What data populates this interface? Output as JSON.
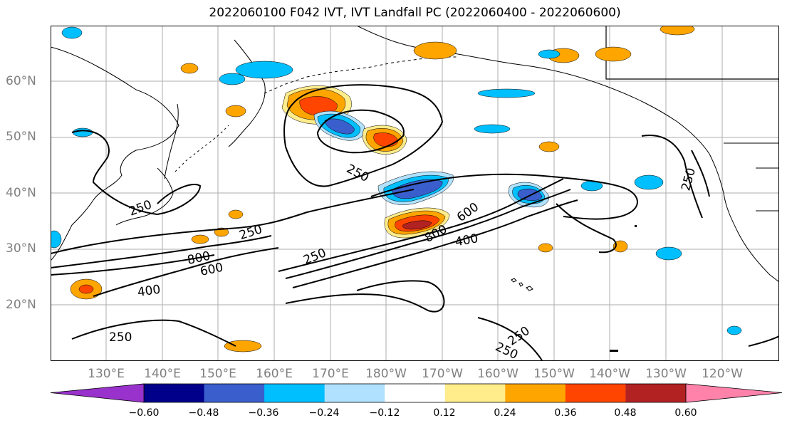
{
  "title": "2022060100 F042 IVT, IVT Landfall PC (2022060400 - 2022060600)",
  "lat_labels": [
    "60°N",
    "50°N",
    "40°N",
    "30°N",
    "20°N"
  ],
  "lon_labels": [
    "130°E",
    "140°E",
    "150°E",
    "160°E",
    "170°E",
    "180°W",
    "170°W",
    "160°W",
    "150°W",
    "140°W",
    "130°W",
    "120°W"
  ],
  "contour_labels": [
    "250",
    "400",
    "600",
    "800"
  ],
  "contour_label_instances": [
    {
      "text": "250",
      "region": "sea-of-okhotsk-gyre"
    },
    {
      "text": "250",
      "region": "japan-east"
    },
    {
      "text": "250",
      "region": "west-pacific-band"
    },
    {
      "text": "250",
      "region": "central-pacific"
    },
    {
      "text": "250",
      "region": "off-california"
    },
    {
      "text": "250",
      "region": "southwest"
    },
    {
      "text": "250",
      "region": "southeast"
    },
    {
      "text": "250",
      "region": "southeast"
    },
    {
      "text": "800",
      "region": "west-pacific-band"
    },
    {
      "text": "600",
      "region": "west-pacific-band"
    },
    {
      "text": "400",
      "region": "west-pacific-band"
    },
    {
      "text": "800",
      "region": "central-jet"
    },
    {
      "text": "600",
      "region": "central-jet"
    },
    {
      "text": "400",
      "region": "central-jet"
    }
  ],
  "colorbar": {
    "ticks": [
      "−0.60",
      "−0.48",
      "−0.36",
      "−0.24",
      "−0.12",
      "0.12",
      "0.24",
      "0.36",
      "0.48",
      "0.60"
    ],
    "colors": [
      "#9932cc",
      "#00008b",
      "#3a5fcd",
      "#00bfff",
      "#b0e2ff",
      "#ffffff",
      "#ffec8b",
      "#ffa500",
      "#ff4500",
      "#b22222",
      "#ff82ab"
    ]
  },
  "colors": {
    "contour": "#000000",
    "coastline": "#000000",
    "grid": "#999999",
    "axis_label": "#7f7f7f"
  }
}
